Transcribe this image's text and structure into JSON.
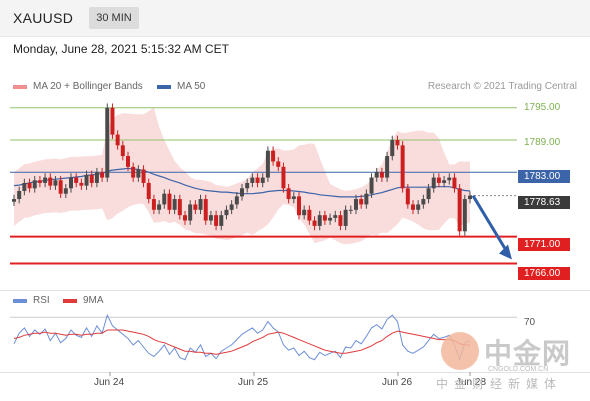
{
  "header": {
    "symbol": "XAUUSD",
    "timeframe": "30 MIN",
    "datetime": "Monday, June 28, 2021 5:15:32 AM CET"
  },
  "credit": "Research © 2021 Trading Central",
  "legend": [
    {
      "label": "MA 20 + Bollinger Bands",
      "color": "#f28f8f"
    },
    {
      "label": "MA 50",
      "color": "#3c64a8"
    }
  ],
  "rsi_legend": [
    {
      "label": "RSI",
      "color": "#6c8fd6"
    },
    {
      "label": "9MA",
      "color": "#e03a3a"
    }
  ],
  "watermark": {
    "title": "中金网",
    "url": "CNGOLD.COM.CN",
    "subtitle": "中金财经新媒体"
  },
  "colors": {
    "up": "#4a4a4a",
    "down": "#cc1f1f",
    "band": "#f7cfcf",
    "ma50": "#3c64a8",
    "resistance": "#8fc36a",
    "pivot": "#3c64a8",
    "support": "#e02020",
    "arrow": "#2f5fa8"
  },
  "chart_data": [
    {
      "type": "line",
      "ylim": [
        1762,
        1797
      ],
      "x_ticks": [
        "Jun 24",
        "Jun 25",
        "Jun 26",
        "Jun 28"
      ],
      "price_levels": [
        {
          "value": "1795.00",
          "role": "resistance"
        },
        {
          "value": "1789.00",
          "role": "resistance"
        },
        {
          "value": "1783.00",
          "role": "pivot"
        },
        {
          "value": "1778.63",
          "role": "last"
        },
        {
          "value": "1771.00",
          "role": "support"
        },
        {
          "value": "1766.00",
          "role": "support"
        }
      ],
      "series": [
        {
          "name": "Price",
          "values": [
            1778.0,
            1779.5,
            1781.0,
            1780.0,
            1781.5,
            1781.0,
            1782.0,
            1780.5,
            1781.5,
            1779.0,
            1780.0,
            1782.0,
            1781.0,
            1780.5,
            1782.5,
            1781.0,
            1783.0,
            1782.0,
            1795.0,
            1790.0,
            1788.0,
            1786.0,
            1784.0,
            1782.0,
            1783.5,
            1781.0,
            1778.0,
            1776.0,
            1777.0,
            1779.0,
            1776.0,
            1778.0,
            1775.0,
            1774.0,
            1777.0,
            1776.0,
            1778.0,
            1774.0,
            1775.0,
            1773.0,
            1775.0,
            1776.0,
            1777.0,
            1778.5,
            1780.0,
            1781.0,
            1782.0,
            1781.0,
            1782.0,
            1787.0,
            1785.0,
            1784.0,
            1780.0,
            1778.0,
            1778.5,
            1775.0,
            1776.0,
            1774.0,
            1773.0,
            1775.0,
            1774.0,
            1774.5,
            1775.0,
            1773.0,
            1776.0,
            1776.0,
            1778.0,
            1777.0,
            1779.0,
            1782.0,
            1783.0,
            1782.0,
            1786.0,
            1789.0,
            1788.0,
            1780.0,
            1777.0,
            1776.0,
            1777.0,
            1778.0,
            1780.0,
            1782.0,
            1781.0,
            1781.5,
            1782.0,
            1780.0,
            1772.0,
            1778.0,
            1778.63
          ]
        },
        {
          "name": "MA 50",
          "values": [
            1780.5,
            1780.6,
            1780.8,
            1781.0,
            1781.2,
            1781.3,
            1781.5,
            1781.6,
            1781.7,
            1781.8,
            1781.9,
            1782.0,
            1782.1,
            1782.2,
            1782.4,
            1782.5,
            1782.6,
            1782.7,
            1783.2,
            1783.4,
            1783.5,
            1783.6,
            1783.7,
            1783.6,
            1783.5,
            1783.3,
            1783.0,
            1782.6,
            1782.3,
            1782.0,
            1781.6,
            1781.3,
            1781.0,
            1780.6,
            1780.3,
            1780.0,
            1779.8,
            1779.6,
            1779.5,
            1779.4,
            1779.3,
            1779.3,
            1779.2,
            1779.1,
            1779.0,
            1779.0,
            1779.0,
            1779.1,
            1779.2,
            1779.4,
            1779.5,
            1779.6,
            1779.6,
            1779.6,
            1779.5,
            1779.4,
            1779.3,
            1779.1,
            1779.0,
            1778.8,
            1778.7,
            1778.6,
            1778.5,
            1778.4,
            1778.4,
            1778.4,
            1778.4,
            1778.5,
            1778.6,
            1778.8,
            1779.0,
            1779.2,
            1779.5,
            1779.8,
            1780.1,
            1780.2,
            1780.2,
            1780.2,
            1780.2,
            1780.2,
            1780.2,
            1780.3,
            1780.3,
            1780.3,
            1780.3,
            1780.1,
            1779.8,
            1779.6,
            1779.5
          ]
        }
      ]
    },
    {
      "type": "line",
      "ylim": [
        25,
        75
      ],
      "y_ticks": [
        70
      ],
      "series": [
        {
          "name": "RSI",
          "values": [
            45,
            55,
            60,
            52,
            58,
            54,
            59,
            48,
            55,
            46,
            50,
            58,
            53,
            51,
            60,
            52,
            62,
            55,
            72,
            62,
            58,
            54,
            50,
            44,
            48,
            42,
            36,
            33,
            38,
            44,
            35,
            41,
            32,
            30,
            41,
            37,
            44,
            33,
            36,
            31,
            38,
            41,
            44,
            49,
            54,
            57,
            60,
            55,
            58,
            66,
            60,
            56,
            44,
            39,
            41,
            34,
            38,
            32,
            30,
            37,
            34,
            36,
            38,
            32,
            42,
            41,
            48,
            45,
            52,
            60,
            63,
            59,
            68,
            72,
            66,
            44,
            38,
            36,
            39,
            42,
            48,
            54,
            50,
            51,
            53,
            44,
            30,
            46,
            48
          ]
        },
        {
          "name": "9MA",
          "values": [
            50,
            51,
            53,
            54,
            55,
            55,
            56,
            55,
            55,
            54,
            53,
            54,
            54,
            53,
            54,
            54,
            55,
            55,
            58,
            58,
            58,
            58,
            57,
            56,
            55,
            54,
            52,
            49,
            47,
            46,
            44,
            42,
            40,
            38,
            38,
            37,
            37,
            36,
            36,
            35,
            36,
            37,
            38,
            40,
            42,
            44,
            47,
            49,
            51,
            54,
            55,
            56,
            55,
            53,
            51,
            49,
            47,
            45,
            43,
            41,
            39,
            38,
            37,
            36,
            36,
            37,
            38,
            39,
            41,
            43,
            46,
            48,
            52,
            55,
            57,
            56,
            55,
            54,
            53,
            52,
            51,
            50,
            49,
            49,
            49,
            48,
            45,
            44,
            44
          ]
        }
      ]
    }
  ]
}
